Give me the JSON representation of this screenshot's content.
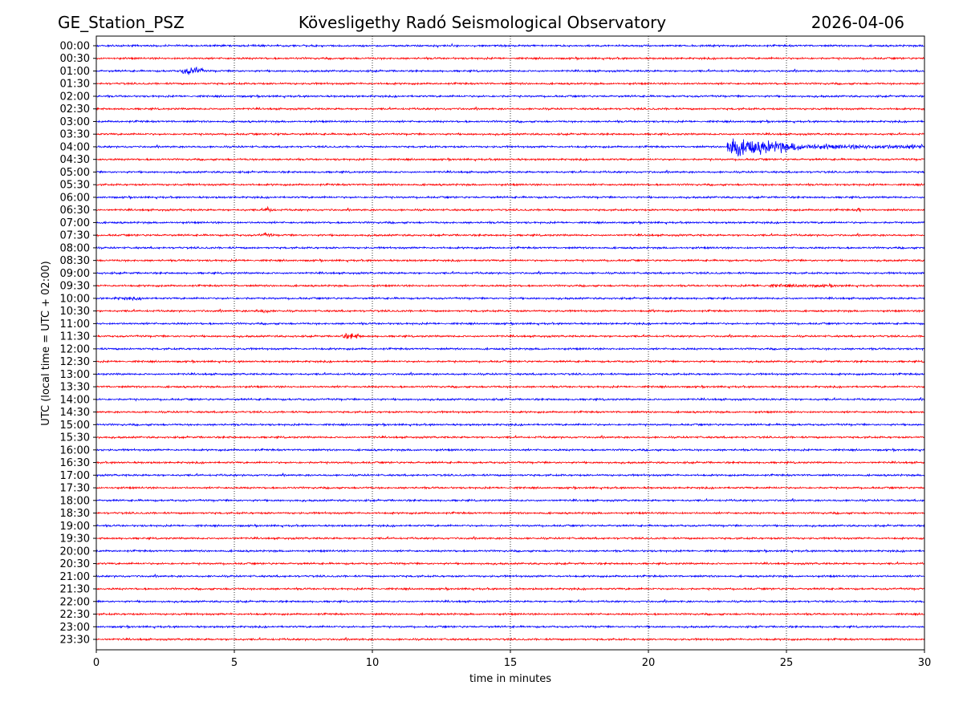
{
  "header": {
    "station": "GE_Station_PSZ",
    "title": "Kövesligethy Radó Seismological Observatory",
    "date": "2026-04-06"
  },
  "chart_data": {
    "type": "line",
    "subtype": "seismogram-dayplot",
    "xlabel": "time in minutes",
    "ylabel": "UTC (local time = UTC + 02:00)",
    "xlim": [
      0,
      30
    ],
    "xticks": [
      0,
      5,
      10,
      15,
      20,
      25,
      30
    ],
    "xtick_labels": [
      "0",
      "5",
      "10",
      "15",
      "20",
      "25",
      "30"
    ],
    "grid": "vertical dotted at 5-minute intervals",
    "row_labels": [
      "00:00",
      "00:30",
      "01:00",
      "01:30",
      "02:00",
      "02:30",
      "03:00",
      "03:30",
      "04:00",
      "04:30",
      "05:00",
      "05:30",
      "06:00",
      "06:30",
      "07:00",
      "07:30",
      "08:00",
      "08:30",
      "09:00",
      "09:30",
      "10:00",
      "10:30",
      "11:00",
      "11:30",
      "12:00",
      "12:30",
      "13:00",
      "13:30",
      "14:00",
      "14:30",
      "15:00",
      "15:30",
      "16:00",
      "16:30",
      "17:00",
      "17:30",
      "18:00",
      "18:30",
      "19:00",
      "19:30",
      "20:00",
      "20:30",
      "21:00",
      "21:30",
      "22:00",
      "22:30",
      "23:00",
      "23:30"
    ],
    "colors": [
      "#0000ff",
      "#ff0000"
    ],
    "events": [
      {
        "row": "01:00",
        "start_min": 2.9,
        "end_min": 4.3,
        "amplitude": 4
      },
      {
        "row": "03:30",
        "start_min": 6.3,
        "end_min": 7.1,
        "amplitude": 1.5
      },
      {
        "row": "04:00",
        "start_min": 22.85,
        "end_min": 30,
        "amplitude": 14
      },
      {
        "row": "06:30",
        "start_min": 6.0,
        "end_min": 6.6,
        "amplitude": 3
      },
      {
        "row": "06:30",
        "start_min": 27.5,
        "end_min": 27.8,
        "amplitude": 3
      },
      {
        "row": "07:30",
        "start_min": 5.7,
        "end_min": 6.8,
        "amplitude": 2
      },
      {
        "row": "09:30",
        "start_min": 22.0,
        "end_min": 30,
        "amplitude": 1.6
      },
      {
        "row": "10:00",
        "start_min": 0,
        "end_min": 3.0,
        "amplitude": 1.6
      },
      {
        "row": "10:30",
        "start_min": 5.5,
        "end_min": 6.8,
        "amplitude": 2
      },
      {
        "row": "10:30",
        "start_min": 20.0,
        "end_min": 20.3,
        "amplitude": 2
      },
      {
        "row": "11:30",
        "start_min": 8.7,
        "end_min": 10.0,
        "amplitude": 3
      }
    ]
  }
}
